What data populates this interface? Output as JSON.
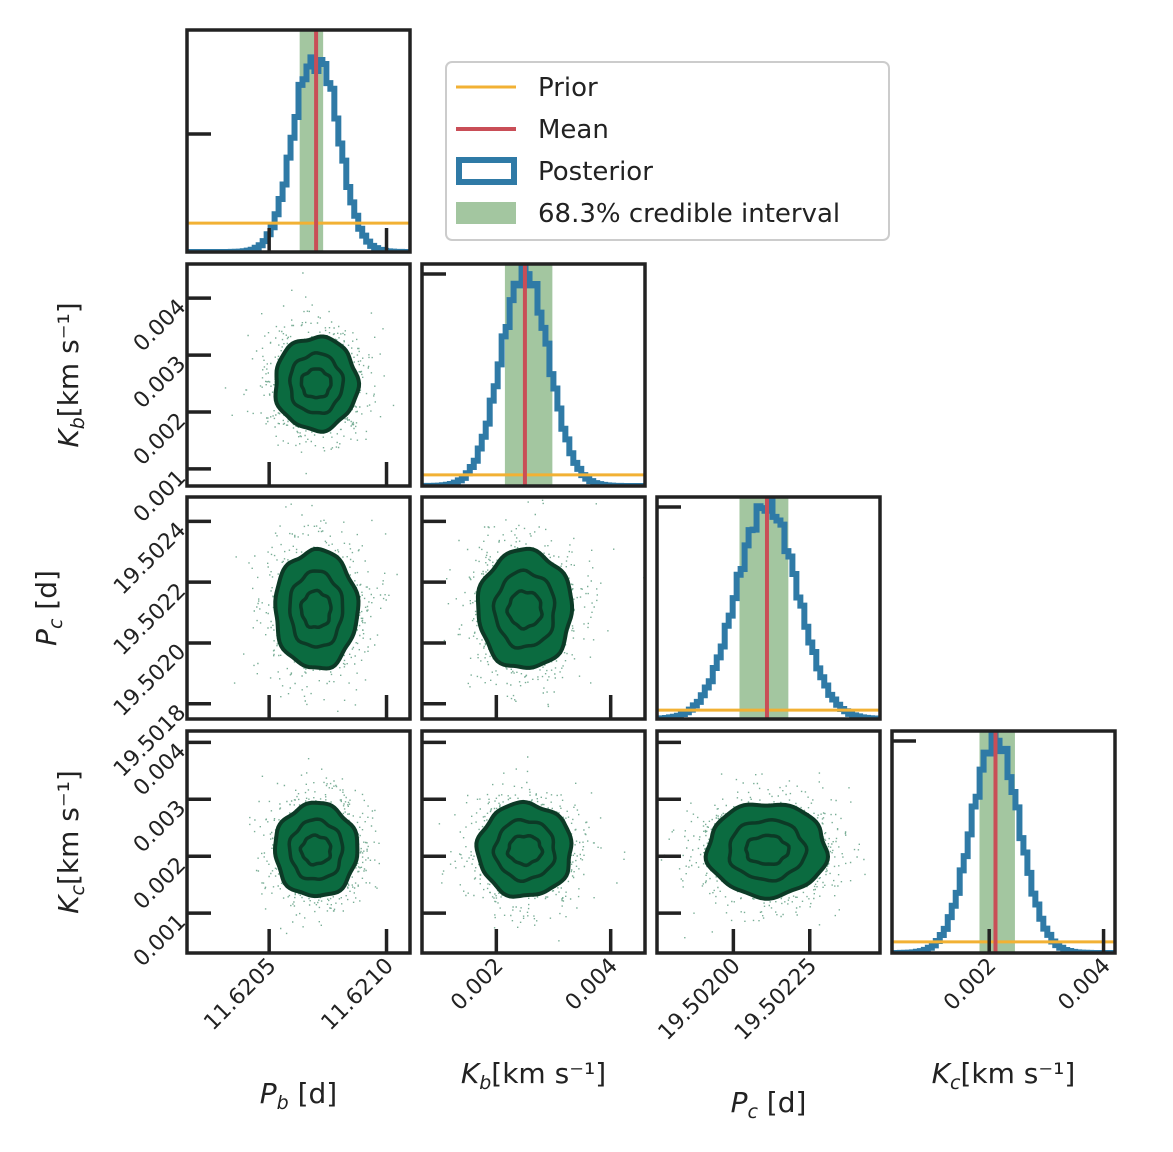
{
  "colors": {
    "prior": "#f2b134",
    "mean": "#c94e57",
    "posterior": "#2f7aa6",
    "interval": "#a3c6a0",
    "scatter": "#0b6b40",
    "contour": "#0c3a26",
    "frame": "#222222"
  },
  "legend": {
    "prior": "Prior",
    "mean": "Mean",
    "posterior": "Posterior",
    "interval": "68.3% credible interval"
  },
  "chart_data": {
    "type": "corner",
    "parameters": [
      {
        "key": "Pb",
        "label_main": "P",
        "label_sub": "b",
        "label_rest": " [d]",
        "range": [
          11.62015,
          11.6211
        ],
        "ticks": [
          11.6205,
          11.621
        ],
        "tick_labels": [
          "11.6205",
          "11.6210"
        ],
        "mean": 11.6207,
        "ci": [
          11.62063,
          11.62073
        ],
        "sd": 9e-05,
        "prior_level": 0.13
      },
      {
        "key": "Kb",
        "label_main": "K",
        "label_sub": "b",
        "label_rest": "[km s⁻¹]",
        "range": [
          0.0007,
          0.0046
        ],
        "ticks": [
          0.001,
          0.002,
          0.003,
          0.004
        ],
        "tick_labels": [
          "0.001",
          "0.002",
          "0.003",
          "0.004"
        ],
        "bottom_ticks": [
          0.002,
          0.004
        ],
        "bottom_tick_labels": [
          "0.002",
          "0.004"
        ],
        "mean": 0.0025,
        "ci": [
          0.00215,
          0.00298
        ],
        "sd": 0.00042,
        "prior_level": 0.05
      },
      {
        "key": "Pc",
        "label_main": "P",
        "label_sub": "c",
        "label_rest": " [d]",
        "range": [
          19.50175,
          19.50248
        ],
        "ticks": [
          19.5018,
          19.502,
          19.5022,
          19.5024
        ],
        "tick_labels": [
          "19.5018",
          "19.5020",
          "19.5022",
          "19.5024"
        ],
        "bottom_ticks": [
          19.502,
          19.50225
        ],
        "bottom_tick_labels": [
          "19.50200",
          "19.50225"
        ],
        "mean": 19.50211,
        "ci": [
          19.50202,
          19.50218
        ],
        "sd": 0.0001,
        "prior_level": 0.04
      },
      {
        "key": "Kc",
        "label_main": "K",
        "label_sub": "c",
        "label_rest": "[km s⁻¹]",
        "range": [
          0.0003,
          0.0042
        ],
        "ticks": [
          0.001,
          0.002,
          0.003,
          0.004
        ],
        "tick_labels": [
          "0.001",
          "0.002",
          "0.003",
          "0.004"
        ],
        "bottom_ticks": [
          0.002,
          0.004
        ],
        "bottom_tick_labels": [
          "0.002",
          "0.004"
        ],
        "mean": 0.00211,
        "ci": [
          0.00183,
          0.00245
        ],
        "sd": 0.00042,
        "prior_level": 0.05
      }
    ]
  }
}
